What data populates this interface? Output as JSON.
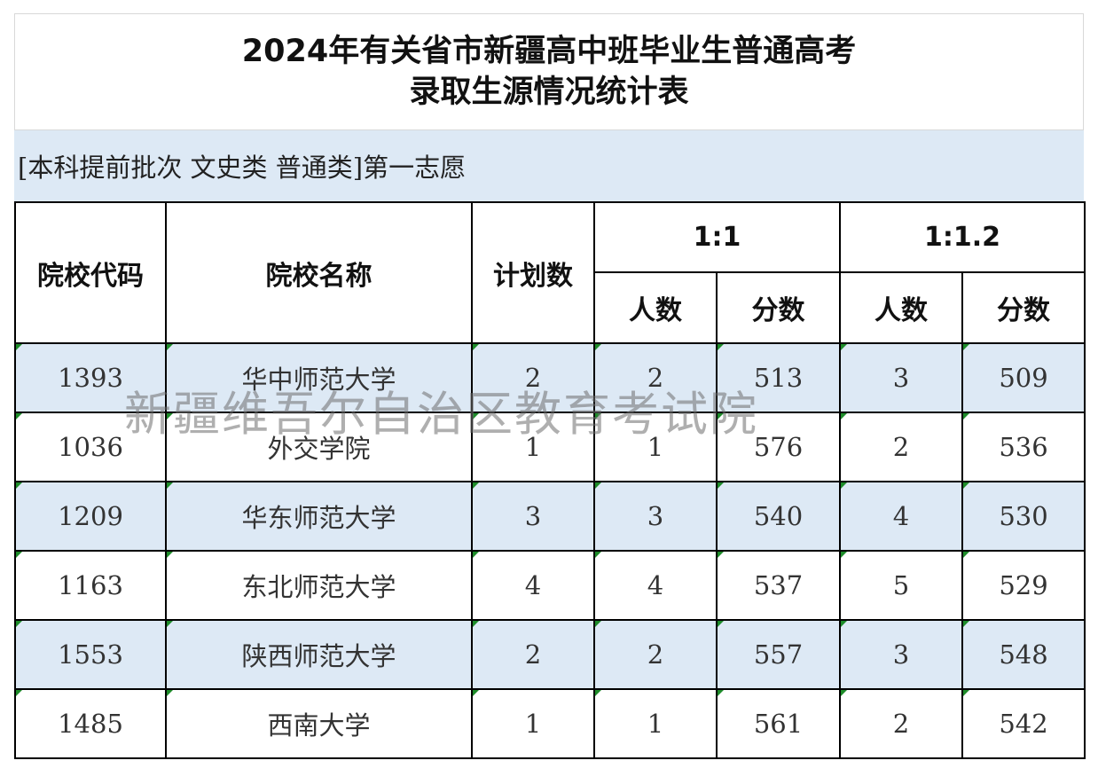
{
  "title": {
    "line1": "2024年有关省市新疆高中班毕业生普通高考",
    "line2": "录取生源情况统计表"
  },
  "subtitle": "[本科提前批次 文史类 普通类]第一志愿",
  "headers": {
    "code": "院校代码",
    "name": "院校名称",
    "plan": "计划数",
    "ratio1": "1:1",
    "ratio2": "1:1.2",
    "count": "人数",
    "score": "分数"
  },
  "rows": [
    {
      "code": "1393",
      "name": "华中师范大学",
      "plan": "2",
      "r1_count": "2",
      "r1_score": "513",
      "r2_count": "3",
      "r2_score": "509"
    },
    {
      "code": "1036",
      "name": "外交学院",
      "plan": "1",
      "r1_count": "1",
      "r1_score": "576",
      "r2_count": "2",
      "r2_score": "536"
    },
    {
      "code": "1209",
      "name": "华东师范大学",
      "plan": "3",
      "r1_count": "3",
      "r1_score": "540",
      "r2_count": "4",
      "r2_score": "530"
    },
    {
      "code": "1163",
      "name": "东北师范大学",
      "plan": "4",
      "r1_count": "4",
      "r1_score": "537",
      "r2_count": "5",
      "r2_score": "529"
    },
    {
      "code": "1553",
      "name": "陕西师范大学",
      "plan": "2",
      "r1_count": "2",
      "r1_score": "557",
      "r2_count": "3",
      "r2_score": "548"
    },
    {
      "code": "1485",
      "name": "西南大学",
      "plan": "1",
      "r1_count": "1",
      "r1_score": "561",
      "r2_count": "2",
      "r2_score": "542"
    }
  ],
  "watermark": "新疆维吾尔自治区教育考试院",
  "colors": {
    "row_shade": "#dde9f5",
    "corner_mark": "#1e8c2a"
  }
}
